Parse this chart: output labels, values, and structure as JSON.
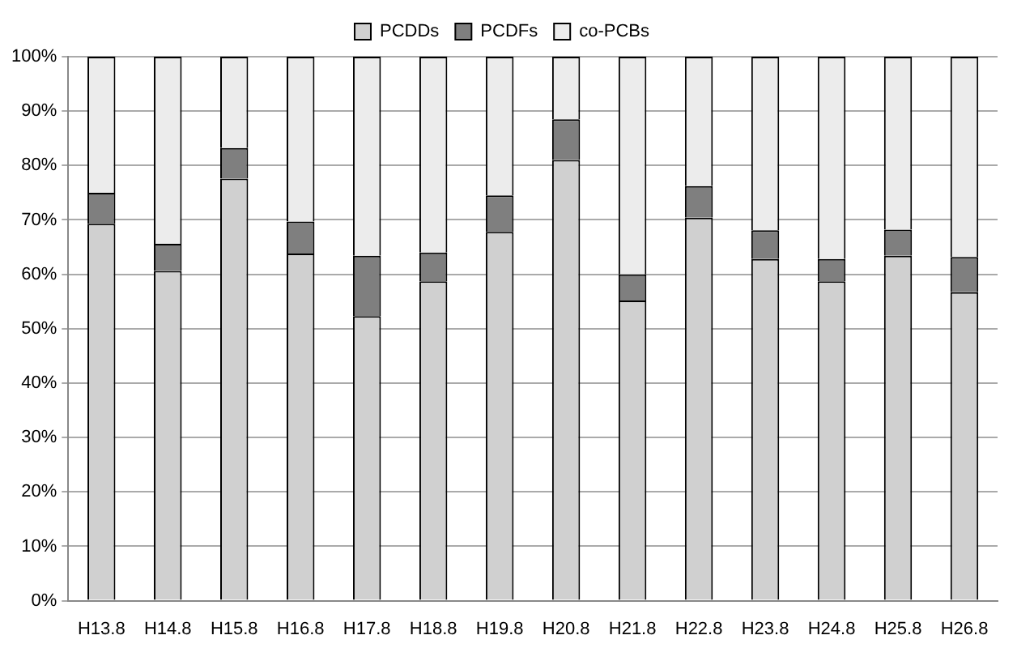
{
  "chart_data": {
    "type": "bar",
    "stacked": true,
    "categories": [
      "H13.8",
      "H14.8",
      "H15.8",
      "H16.8",
      "H17.8",
      "H18.8",
      "H19.8",
      "H20.8",
      "H21.8",
      "H22.8",
      "H23.8",
      "H24.8",
      "H25.8",
      "H26.8"
    ],
    "series": [
      {
        "name": "PCDDs",
        "color": "#d0d0d0",
        "values": [
          69.3,
          60.6,
          77.6,
          63.8,
          52.3,
          58.7,
          67.8,
          81.0,
          55.2,
          70.4,
          62.8,
          58.7,
          63.4,
          56.7
        ]
      },
      {
        "name": "PCDFs",
        "color": "#7f7f7f",
        "values": [
          5.7,
          5.0,
          5.6,
          5.9,
          11.1,
          5.3,
          6.7,
          7.5,
          4.8,
          5.8,
          5.3,
          4.1,
          4.8,
          6.5
        ]
      },
      {
        "name": "co-PCBs",
        "color": "#ececec",
        "values": [
          25.0,
          34.4,
          16.8,
          30.3,
          36.6,
          36.0,
          25.5,
          11.5,
          40.0,
          23.8,
          31.9,
          37.2,
          31.8,
          36.8
        ]
      }
    ],
    "ylim": [
      0,
      100
    ],
    "yticks": [
      {
        "value": 0,
        "label": "0%"
      },
      {
        "value": 10,
        "label": "10%"
      },
      {
        "value": 20,
        "label": "20%"
      },
      {
        "value": 30,
        "label": "30%"
      },
      {
        "value": 40,
        "label": "40%"
      },
      {
        "value": 50,
        "label": "50%"
      },
      {
        "value": 60,
        "label": "60%"
      },
      {
        "value": 70,
        "label": "70%"
      },
      {
        "value": 80,
        "label": "80%"
      },
      {
        "value": 90,
        "label": "90%"
      },
      {
        "value": 100,
        "label": "100%"
      }
    ],
    "grid": "y",
    "legend": "top"
  }
}
